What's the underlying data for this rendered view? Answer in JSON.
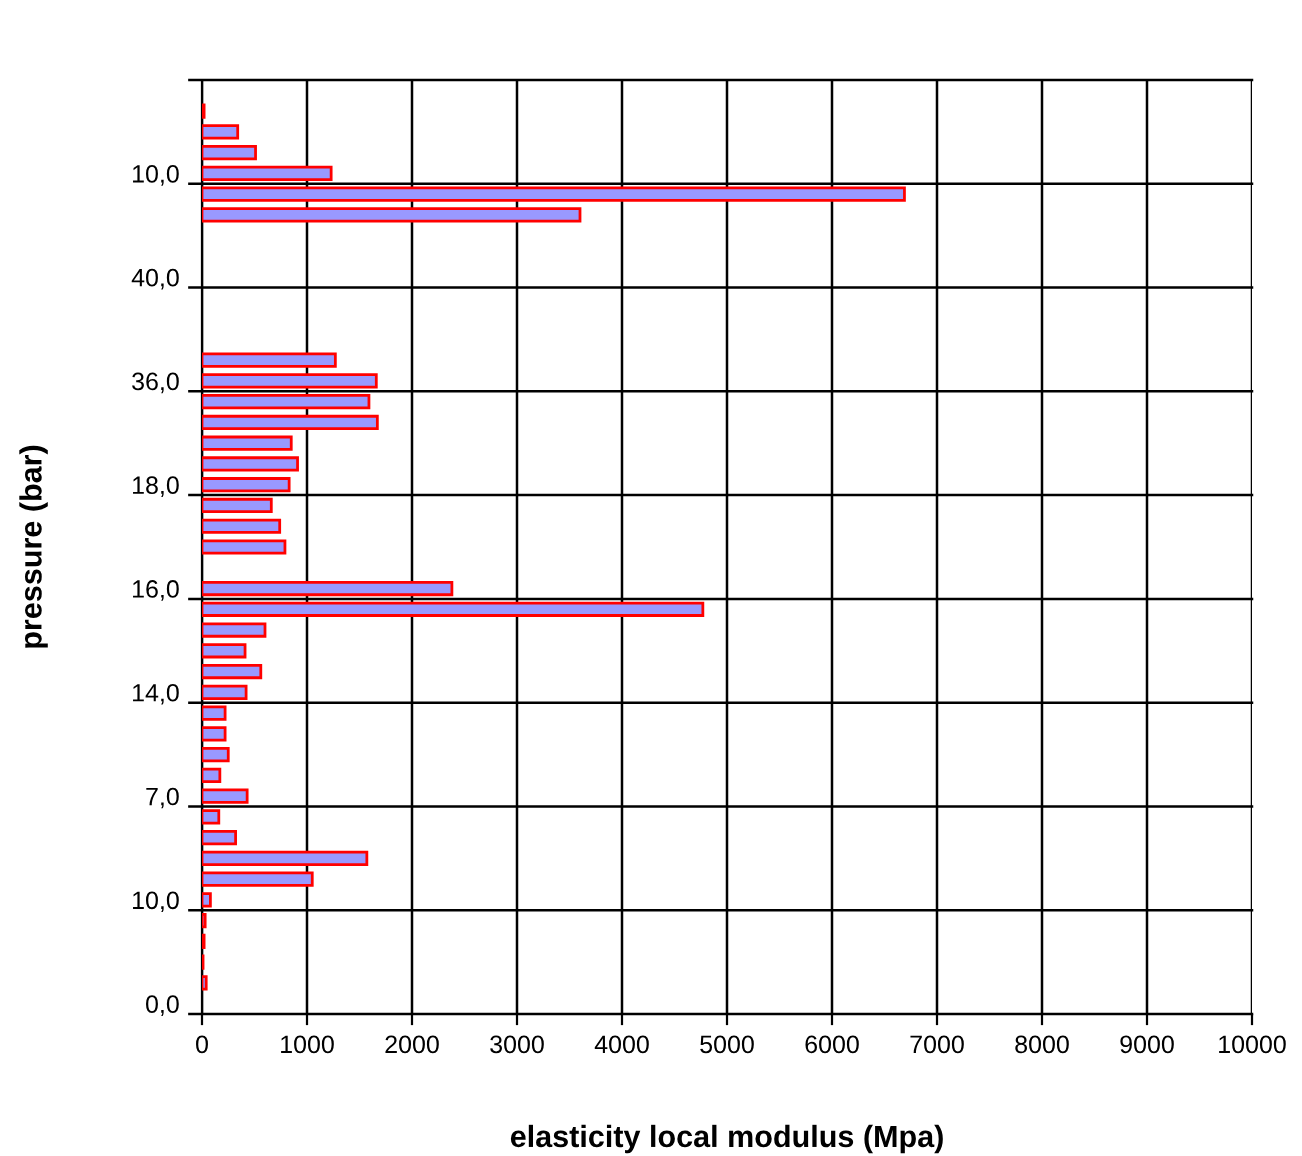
{
  "chart_data": {
    "type": "bar",
    "orientation": "horizontal",
    "xlabel": "elasticity local modulus (Mpa)",
    "ylabel": "pressure (bar)",
    "categories": [
      null,
      null,
      null,
      null,
      "10,0",
      null,
      null,
      null,
      null,
      "40,0",
      null,
      null,
      null,
      null,
      "36,0",
      null,
      null,
      null,
      null,
      "18,0",
      null,
      null,
      null,
      null,
      "16,0",
      null,
      null,
      null,
      null,
      "14,0",
      null,
      null,
      null,
      null,
      "7,0",
      null,
      null,
      null,
      null,
      "10,0",
      null,
      null,
      null,
      null,
      "0,0"
    ],
    "series": [
      {
        "color": "#9999ff",
        "values": [
          null,
          20,
          340,
          510,
          1230,
          6690,
          3600,
          null,
          null,
          null,
          null,
          null,
          null,
          1270,
          1660,
          1590,
          1670,
          850,
          910,
          830,
          660,
          740,
          790,
          null,
          2380,
          4770,
          600,
          410,
          560,
          420,
          220,
          220,
          250,
          170,
          430,
          160,
          320,
          1570,
          1050,
          80,
          30,
          20,
          10,
          40,
          null
        ]
      }
    ],
    "xlim": [
      0,
      10000
    ],
    "xticks": [
      0,
      1000,
      2000,
      3000,
      4000,
      5000,
      6000,
      7000,
      8000,
      9000,
      10000
    ],
    "grid": true,
    "legend": false
  }
}
